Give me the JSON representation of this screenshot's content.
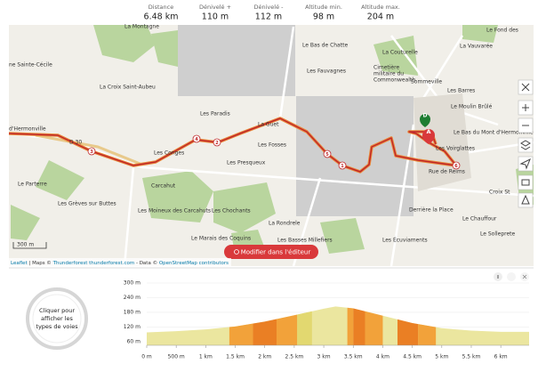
{
  "stats": [
    {
      "label": "Distance",
      "value": "6.48 km"
    },
    {
      "label": "Dénivelé +",
      "value": "110 m"
    },
    {
      "label": "Dénivelé -",
      "value": "112 m"
    },
    {
      "label": "Altitude min.",
      "value": "98 m"
    },
    {
      "label": "Altitude max.",
      "value": "204 m"
    }
  ],
  "map": {
    "labels": [
      "La Montagne",
      "ne Sainte-Cécile",
      "La Croix Saint-Aubeu",
      "d'Hermonville",
      "Les Paradis",
      "La Guet",
      "Les Conges",
      "Les Fosses",
      "Les Presqueux",
      "Le Parterre",
      "Les Grèves sur Buttes",
      "Carcahut",
      "Les Moineux des Carcahuts",
      "Les Chochants",
      "La Rondrele",
      "Le Marais des Coquins",
      "Les Basses Millefiers",
      "Le Bas de Chatte",
      "La Couturelle",
      "La Vauvarée",
      "Le Fond des",
      "Les Fauvagnes",
      "Cimetière",
      "militaire du",
      "Commonwealth",
      "Sommeville",
      "Les Barres",
      "Le Moulin Brûlé",
      "Le Bas du Mont d'Hermonville",
      "Les Voirglattes",
      "Rue de Reims",
      "Croix St",
      "Derrière la Place",
      "Le Chauffour",
      "Les Écuviaments",
      "Le Solleprete",
      "D 30"
    ],
    "km_markers": [
      "1",
      "2",
      "3",
      "4",
      "5",
      "6"
    ],
    "start_label": "D",
    "end_label": "A",
    "scale": "300 m",
    "edit_button": "Modifier dans l'éditeur",
    "attribution": [
      "Leaflet",
      "| Maps ©",
      "Thunderforest thunderforest.com",
      "- Data ©",
      "OpenStreetMap contributors"
    ]
  },
  "road_types": {
    "lines": [
      "Cliquer pour",
      "afficher les",
      "types de voies"
    ]
  },
  "chart_data": {
    "type": "area",
    "x": [
      0,
      0.5,
      1,
      1.5,
      2,
      2.5,
      3,
      3.2,
      3.5,
      4,
      4.5,
      5,
      5.5,
      6,
      6.48
    ],
    "values": [
      98,
      103,
      110,
      122,
      142,
      168,
      195,
      204,
      196,
      166,
      136,
      115,
      105,
      100,
      100
    ],
    "color": "#ebe69f",
    "segments": [
      {
        "from": 1.4,
        "to": 1.8,
        "color": "#f2a23a"
      },
      {
        "from": 1.8,
        "to": 2.2,
        "color": "#ea7f24"
      },
      {
        "from": 2.2,
        "to": 2.55,
        "color": "#f2a23a"
      },
      {
        "from": 2.55,
        "to": 2.8,
        "color": "#e2d870"
      },
      {
        "from": 3.4,
        "to": 3.5,
        "color": "#f2a23a"
      },
      {
        "from": 3.5,
        "to": 3.7,
        "color": "#ea7f24"
      },
      {
        "from": 3.7,
        "to": 4.0,
        "color": "#f2a23a"
      },
      {
        "from": 4.25,
        "to": 4.6,
        "color": "#ea7f24"
      },
      {
        "from": 4.6,
        "to": 4.9,
        "color": "#f2a23a"
      }
    ],
    "xlim": [
      0,
      6.48
    ],
    "ylim": [
      45,
      300
    ],
    "xticks": [
      {
        "value": 0,
        "label": "0 m"
      },
      {
        "value": 0.5,
        "label": "500 m"
      },
      {
        "value": 1,
        "label": "1 km"
      },
      {
        "value": 1.5,
        "label": "1.5 km"
      },
      {
        "value": 2,
        "label": "2 km"
      },
      {
        "value": 2.5,
        "label": "2.5 km"
      },
      {
        "value": 3,
        "label": "3 km"
      },
      {
        "value": 3.5,
        "label": "3.5 km"
      },
      {
        "value": 4,
        "label": "4 km"
      },
      {
        "value": 4.5,
        "label": "4.5 km"
      },
      {
        "value": 5,
        "label": "5 km"
      },
      {
        "value": 5.5,
        "label": "5.5 km"
      },
      {
        "value": 6,
        "label": "6 km"
      }
    ],
    "yticks": [
      {
        "value": 300,
        "label": "300 m"
      },
      {
        "value": 240,
        "label": "240 m"
      },
      {
        "value": 180,
        "label": "180 m"
      },
      {
        "value": 120,
        "label": "120 m"
      },
      {
        "value": 60,
        "label": "60 m"
      }
    ],
    "grid": true
  }
}
